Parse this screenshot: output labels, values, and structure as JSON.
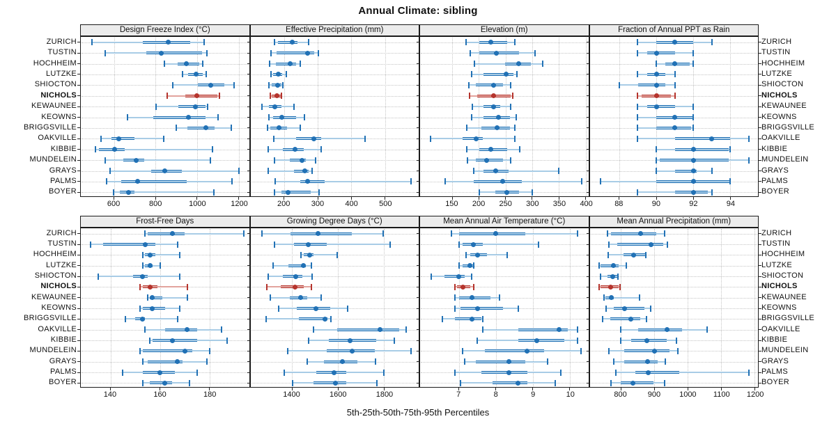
{
  "title": "Annual Climate: sibling",
  "caption": "5th-25th-50th-75th-95th Percentiles",
  "colors": {
    "blue": "#2171b5",
    "blue_light": "#a8cce6",
    "red": "#b5342d",
    "red_light": "#e2a39d",
    "header_bg": "#ececec",
    "grid": "#c4c4c4",
    "border": "#1a1a1a"
  },
  "chart_data": {
    "type": "percentile_dotplot_trellis",
    "layout": "2 rows x 4 panels, shared site axis",
    "percentiles": [
      5,
      25,
      50,
      75,
      95
    ],
    "highlight_site": "NICHOLS",
    "sites": [
      "ZURICH",
      "TUSTIN",
      "HOCHHEIM",
      "LUTZKE",
      "SHIOCTON",
      "NICHOLS",
      "KEWAUNEE",
      "KEOWNS",
      "BRIGGSVILLE",
      "OAKVILLE",
      "KIBBIE",
      "MUNDELEIN",
      "GRAYS",
      "PALMS",
      "BOYER"
    ],
    "panels": [
      {
        "title": "Design Freeze Index (°C)",
        "xlim": [
          440,
          1250
        ],
        "ticks": [
          600,
          800,
          1000,
          1200
        ],
        "values": [
          [
            492,
            737,
            862,
            966,
            1035
          ],
          [
            557,
            755,
            829,
            1023,
            1046
          ],
          [
            842,
            906,
            947,
            1011,
            1028
          ],
          [
            931,
            956,
            994,
            1028,
            1044
          ],
          [
            883,
            1002,
            1064,
            1131,
            1178
          ],
          [
            856,
            942,
            998,
            1098,
            1106
          ],
          [
            802,
            911,
            992,
            1039,
            1050
          ],
          [
            664,
            789,
            958,
            1039,
            1100
          ],
          [
            898,
            953,
            1042,
            1083,
            1164
          ],
          [
            536,
            587,
            622,
            698,
            839
          ],
          [
            509,
            528,
            603,
            650,
            1075
          ],
          [
            558,
            644,
            706,
            744,
            1064
          ],
          [
            580,
            780,
            844,
            928,
            1200
          ],
          [
            564,
            636,
            713,
            950,
            1167
          ],
          [
            598,
            628,
            669,
            698,
            1081
          ]
        ]
      },
      {
        "title": "Effective Precipitation (mm)",
        "xlim": [
          100,
          600
        ],
        "ticks": [
          200,
          300,
          400,
          500
        ],
        "values": [
          [
            171,
            181,
            224,
            240,
            272
          ],
          [
            162,
            178,
            270,
            289,
            302
          ],
          [
            157,
            176,
            217,
            236,
            249
          ],
          [
            162,
            167,
            183,
            195,
            206
          ],
          [
            155,
            164,
            181,
            192,
            197
          ],
          [
            159,
            164,
            179,
            190,
            192
          ],
          [
            135,
            155,
            172,
            193,
            230
          ],
          [
            154,
            168,
            194,
            235,
            260
          ],
          [
            151,
            160,
            184,
            208,
            249
          ],
          [
            169,
            236,
            289,
            310,
            440
          ],
          [
            153,
            197,
            233,
            258,
            311
          ],
          [
            171,
            217,
            253,
            265,
            293
          ],
          [
            153,
            230,
            262,
            272,
            284
          ],
          [
            174,
            247,
            270,
            320,
            577
          ],
          [
            172,
            193,
            212,
            279,
            303
          ]
        ]
      },
      {
        "title": "Elevation (m)",
        "xlim": [
          90,
          405
        ],
        "ticks": [
          150,
          200,
          250,
          300,
          350,
          400
        ],
        "values": [
          [
            176,
            201,
            222,
            253,
            268
          ],
          [
            184,
            201,
            233,
            275,
            305
          ],
          [
            192,
            249,
            274,
            297,
            319
          ],
          [
            186,
            209,
            251,
            265,
            271
          ],
          [
            181,
            194,
            227,
            245,
            260
          ],
          [
            182,
            197,
            227,
            260,
            264
          ],
          [
            188,
            209,
            227,
            240,
            259
          ],
          [
            186,
            209,
            237,
            258,
            270
          ],
          [
            178,
            205,
            234,
            258,
            267
          ],
          [
            110,
            170,
            195,
            207,
            267
          ],
          [
            178,
            201,
            223,
            253,
            277
          ],
          [
            179,
            194,
            215,
            245,
            259
          ],
          [
            191,
            209,
            232,
            256,
            350
          ],
          [
            137,
            190,
            245,
            280,
            393
          ],
          [
            201,
            231,
            253,
            275,
            300
          ]
        ]
      },
      {
        "title": "Fraction of Annual PPT as Rain",
        "xlim": [
          86.4,
          95.5
        ],
        "ticks": [
          88,
          90,
          92,
          94
        ],
        "values": [
          [
            89,
            90,
            91,
            92,
            93
          ],
          [
            89,
            89.5,
            90,
            91,
            92
          ],
          [
            90,
            90.5,
            91,
            91.8,
            92
          ],
          [
            89,
            89.5,
            90,
            90.5,
            91
          ],
          [
            88,
            89,
            90,
            90.5,
            91
          ],
          [
            89,
            89.2,
            90,
            90.8,
            91
          ],
          [
            89,
            89.5,
            90,
            91,
            92
          ],
          [
            89,
            90,
            91,
            92,
            92
          ],
          [
            89,
            90,
            91,
            91.9,
            92
          ],
          [
            89,
            91,
            93,
            94,
            95
          ],
          [
            90,
            91,
            92,
            93.9,
            94
          ],
          [
            90,
            90.2,
            92,
            93.9,
            95
          ],
          [
            90,
            91,
            92,
            92.2,
            93
          ],
          [
            87,
            90,
            92,
            94,
            94
          ],
          [
            89,
            91,
            92,
            92.8,
            93
          ]
        ]
      },
      {
        "title": "Frost-Free Days",
        "xlim": [
          128,
          196
        ],
        "ticks": [
          140,
          160,
          180
        ],
        "values": [
          [
            154,
            155,
            165,
            170,
            194
          ],
          [
            132,
            137,
            154,
            158,
            167
          ],
          [
            153,
            154,
            156,
            158,
            168
          ],
          [
            153,
            154,
            156,
            157,
            160
          ],
          [
            135,
            149,
            153,
            155,
            168
          ],
          [
            152,
            153,
            156,
            159,
            171
          ],
          [
            155,
            156,
            157,
            161,
            171
          ],
          [
            152,
            153,
            157,
            162,
            168
          ],
          [
            146,
            150,
            153,
            154,
            167
          ],
          [
            154,
            162,
            171,
            175,
            185
          ],
          [
            156,
            157,
            165,
            175,
            187
          ],
          [
            152,
            153,
            170,
            173,
            180
          ],
          [
            153,
            155,
            167,
            169,
            179
          ],
          [
            145,
            153,
            160,
            166,
            175
          ],
          [
            153,
            156,
            162,
            165,
            172
          ]
        ]
      },
      {
        "title": "Growing Degree Days (°C)",
        "xlim": [
          1220,
          1950
        ],
        "ticks": [
          1400,
          1600,
          1800
        ],
        "values": [
          [
            1270,
            1395,
            1513,
            1660,
            1795
          ],
          [
            1325,
            1410,
            1470,
            1550,
            1825
          ],
          [
            1440,
            1450,
            1477,
            1495,
            1595
          ],
          [
            1317,
            1385,
            1450,
            1460,
            1483
          ],
          [
            1297,
            1360,
            1415,
            1445,
            1487
          ],
          [
            1290,
            1353,
            1413,
            1450,
            1485
          ],
          [
            1305,
            1390,
            1437,
            1465,
            1527
          ],
          [
            1343,
            1420,
            1505,
            1565,
            1643
          ],
          [
            1287,
            1430,
            1542,
            1555,
            1570
          ],
          [
            1493,
            1595,
            1783,
            1865,
            1897
          ],
          [
            1473,
            1560,
            1652,
            1765,
            1843
          ],
          [
            1383,
            1550,
            1660,
            1760,
            1917
          ],
          [
            1465,
            1540,
            1620,
            1685,
            1763
          ],
          [
            1367,
            1505,
            1583,
            1635,
            1800
          ],
          [
            1403,
            1495,
            1590,
            1635,
            1770
          ]
        ]
      },
      {
        "title": "Mean Annual Air Temperature (°C)",
        "xlim": [
          5.95,
          10.5
        ],
        "ticks": [
          7,
          8,
          9,
          10
        ],
        "values": [
          [
            6.8,
            7.0,
            8.0,
            8.8,
            10.2
          ],
          [
            7.0,
            7.1,
            7.4,
            7.65,
            9.15
          ],
          [
            7.2,
            7.3,
            7.5,
            7.75,
            8.3
          ],
          [
            7.0,
            7.1,
            7.3,
            7.38,
            7.4
          ],
          [
            6.25,
            6.6,
            7.0,
            7.15,
            7.35
          ],
          [
            6.9,
            6.95,
            7.1,
            7.3,
            7.4
          ],
          [
            6.9,
            7.0,
            7.35,
            7.85,
            8.1
          ],
          [
            6.9,
            7.05,
            7.5,
            8.2,
            8.6
          ],
          [
            6.55,
            6.9,
            7.35,
            7.6,
            7.65
          ],
          [
            7.65,
            8.6,
            9.7,
            9.95,
            10.2
          ],
          [
            7.5,
            8.6,
            9.1,
            9.85,
            10.2
          ],
          [
            7.1,
            7.7,
            8.85,
            9.3,
            10.3
          ],
          [
            7.15,
            7.45,
            8.35,
            8.8,
            9.4
          ],
          [
            6.9,
            7.6,
            8.35,
            8.85,
            9.75
          ],
          [
            7.05,
            7.9,
            8.6,
            8.85,
            9.6
          ]
        ]
      },
      {
        "title": "Mean Annual Precipitation (mm)",
        "xlim": [
          707,
          1210
        ],
        "ticks": [
          800,
          900,
          1000,
          1100,
          1200
        ],
        "values": [
          [
            760,
            770,
            860,
            905,
            930
          ],
          [
            765,
            790,
            890,
            927,
            940
          ],
          [
            762,
            807,
            838,
            872,
            874
          ],
          [
            735,
            740,
            778,
            793,
            817
          ],
          [
            740,
            760,
            775,
            790,
            792
          ],
          [
            736,
            740,
            769,
            793,
            797
          ],
          [
            750,
            753,
            771,
            778,
            855
          ],
          [
            755,
            778,
            812,
            870,
            890
          ],
          [
            746,
            769,
            829,
            859,
            877
          ],
          [
            799,
            852,
            939,
            983,
            1057
          ],
          [
            799,
            831,
            878,
            938,
            967
          ],
          [
            764,
            810,
            900,
            945,
            971
          ],
          [
            778,
            810,
            879,
            910,
            933
          ],
          [
            785,
            843,
            881,
            974,
            1183
          ],
          [
            771,
            800,
            837,
            897,
            930
          ]
        ]
      }
    ]
  }
}
